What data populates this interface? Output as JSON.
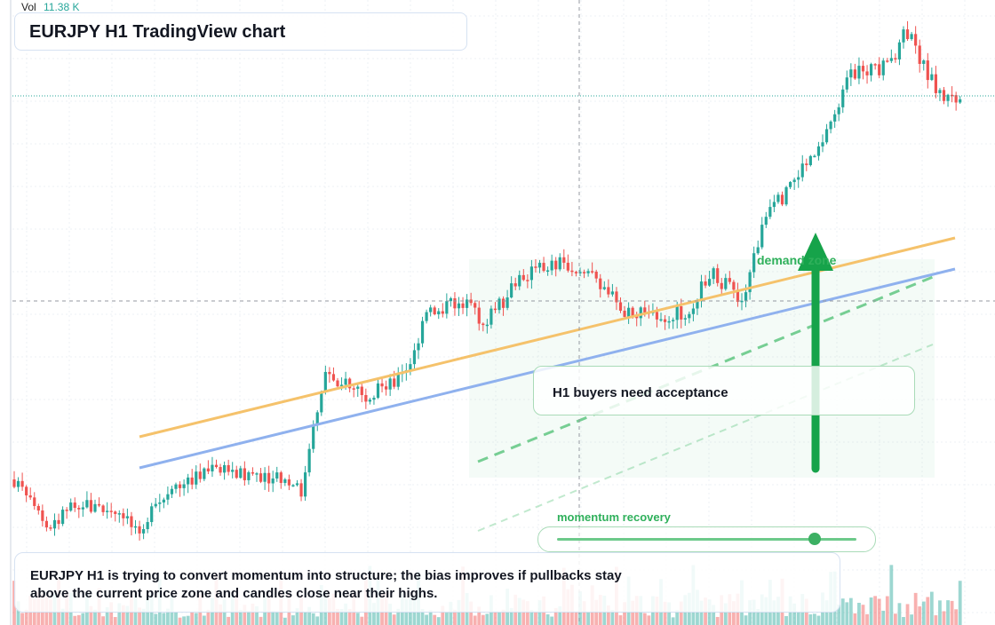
{
  "header": {
    "vol_label": "Vol",
    "vol_value": "11.38 K",
    "title": "EURJPY H1 TradingView chart"
  },
  "annotations": {
    "zone_label": "demand zone",
    "note": "H1 buyers need acceptance",
    "momentum_label": "momentum recovery",
    "momentum_level": 0.86,
    "summary": "EURJPY H1 is trying to convert momentum into structure; the bias improves if pullbacks stay above the current price zone and candles close near their highs."
  },
  "colors": {
    "up": "#26a69a",
    "down": "#ef5350",
    "accent_green": "#2fb05b",
    "trend_orange": "#f5c26b",
    "trend_blue": "#8fb1ee"
  },
  "icons": {
    "arrow": "up-arrow-icon"
  }
}
